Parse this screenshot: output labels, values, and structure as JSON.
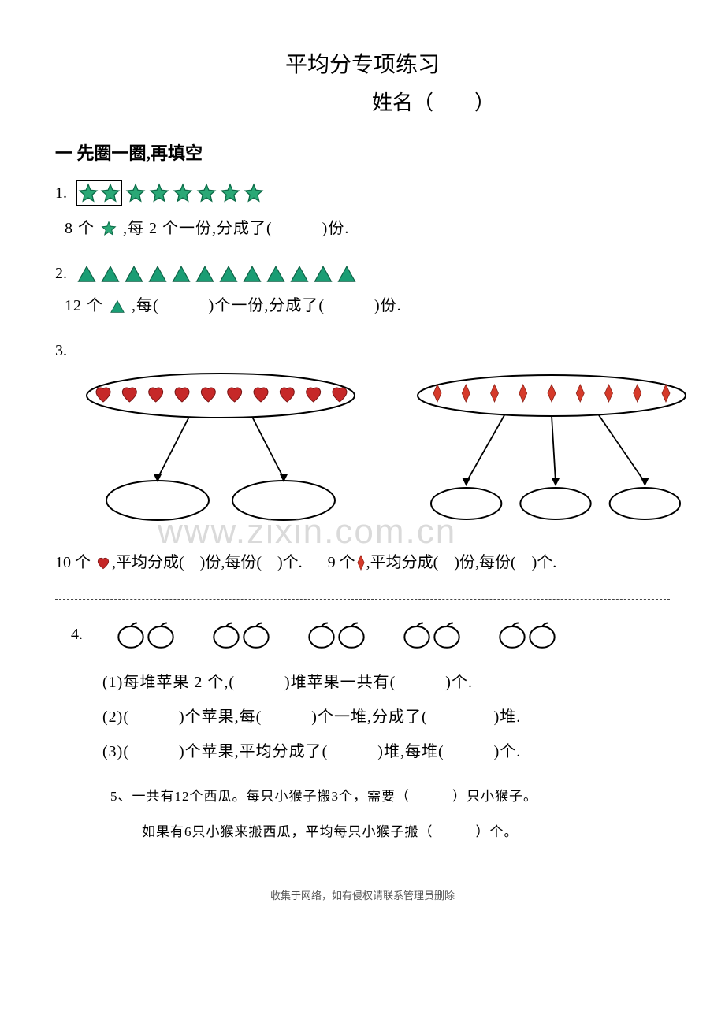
{
  "title": "平均分专项练习",
  "name_label": "姓名（　　）",
  "section1_header": "一 先圈一圈,再填空",
  "q1": {
    "num": "1.",
    "count": 8,
    "boxed_count": 2,
    "star_fill": "#2aa876",
    "star_stroke": "#0b6b47",
    "text_before": "8 个 ",
    "text_after": " ,每 2 个一份,分成了(　　　)份."
  },
  "q2": {
    "num": "2.",
    "count": 12,
    "tri_fill": "#1a9d74",
    "tri_stroke": "#0a5c40",
    "text_before": "12 个",
    "text_after": " ,每(　　　)个一份,分成了(　　　)份."
  },
  "q3": {
    "num": "3.",
    "hearts": {
      "count": 10,
      "fill": "#c62828",
      "stroke": "#7a1515",
      "oval_stroke": "#000000",
      "arrow_color": "#000000",
      "child_count": 2
    },
    "diamonds": {
      "count": 9,
      "fill": "#d63a2a",
      "stroke": "#8a2218",
      "oval_stroke": "#000000",
      "arrow_color": "#000000",
      "child_count": 3
    },
    "text_left": "10 个 ♥,平均分成(　　)份,每份(　　)个.",
    "text_right": "9 个 ◆,平均分成(　　)份,每份(　　)个.",
    "heart_fill": "#c62828",
    "diamond_fill": "#d63a2a"
  },
  "q4": {
    "num": "4.",
    "pair_count": 5,
    "apple_stroke": "#000000",
    "sub1": "(1)每堆苹果 2 个,(　　　)堆苹果一共有(　　　)个.",
    "sub2": "(2)(　　　)个苹果,每(　　　)个一堆,分成了(　　　　)堆.",
    "sub3": "(3)(　　　)个苹果,平均分成了(　　　)堆,每堆(　　　)个."
  },
  "q5": {
    "line1": "5、一共有12个西瓜。每只小猴子搬3个，需要（　　　）只小猴子。",
    "line2": "如果有6只小猴来搬西瓜，平均每只小猴子搬（　　　）个。"
  },
  "watermark": "www.zixin.com.cn",
  "footer": "收集于网络，如有侵权请联系管理员删除"
}
